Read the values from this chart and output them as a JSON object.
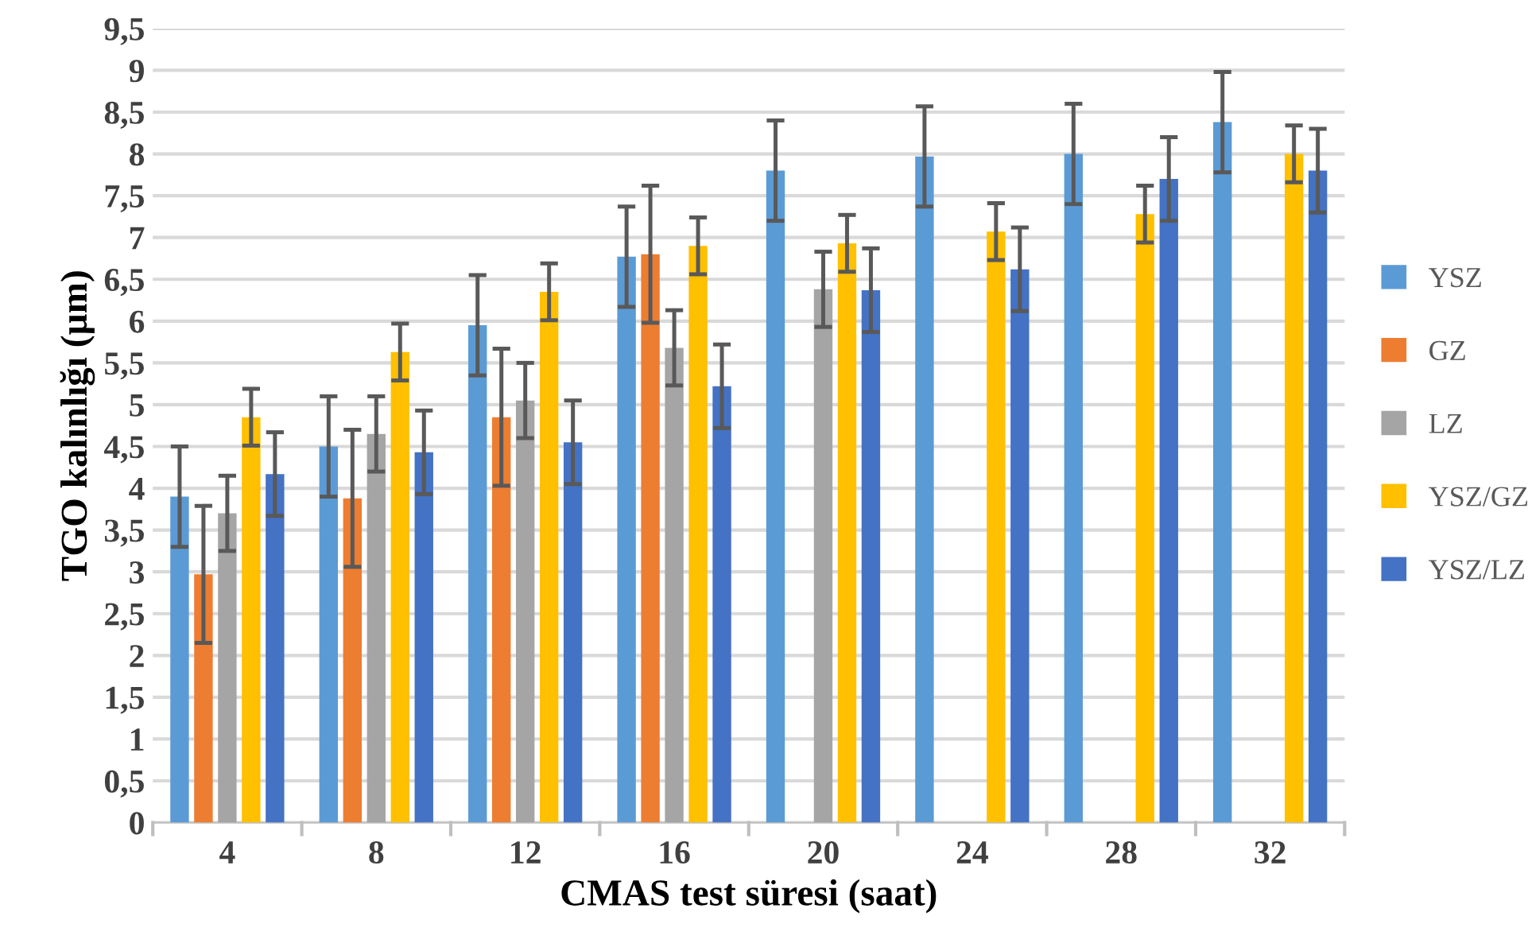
{
  "chart_data": {
    "type": "bar",
    "xlabel": "CMAS test süresi (saat)",
    "ylabel": "TGO kalınlığı (µm)",
    "categories": [
      "4",
      "8",
      "12",
      "16",
      "20",
      "24",
      "28",
      "32"
    ],
    "series": [
      {
        "name": "YSZ",
        "color": "#5b9bd5",
        "values": [
          3.9,
          4.5,
          5.95,
          6.77,
          7.8,
          7.97,
          8.0,
          8.38
        ],
        "errors": [
          0.6,
          0.6,
          0.6,
          0.6,
          0.6,
          0.6,
          0.6,
          0.6
        ]
      },
      {
        "name": "GZ",
        "color": "#ed7d31",
        "values": [
          2.97,
          3.88,
          4.85,
          6.8,
          null,
          null,
          null,
          null
        ],
        "errors": [
          0.82,
          0.82,
          0.82,
          0.82,
          null,
          null,
          null,
          null
        ]
      },
      {
        "name": "LZ",
        "color": "#a5a5a5",
        "values": [
          3.7,
          4.65,
          5.05,
          5.68,
          6.38,
          null,
          null,
          null
        ],
        "errors": [
          0.45,
          0.45,
          0.45,
          0.45,
          0.45,
          null,
          null,
          null
        ]
      },
      {
        "name": "YSZ/GZ",
        "color": "#ffc000",
        "values": [
          4.85,
          5.63,
          6.35,
          6.9,
          6.93,
          7.07,
          7.28,
          8.0
        ],
        "errors": [
          0.34,
          0.34,
          0.34,
          0.34,
          0.34,
          0.34,
          0.34,
          0.34
        ]
      },
      {
        "name": "YSZ/LZ",
        "color": "#4472c4",
        "values": [
          4.17,
          4.43,
          4.55,
          5.22,
          6.37,
          6.62,
          7.7,
          7.8
        ],
        "errors": [
          0.5,
          0.5,
          0.5,
          0.5,
          0.5,
          0.5,
          0.5,
          0.5
        ]
      }
    ],
    "ylim": [
      0,
      9.5
    ],
    "yticks": [
      0,
      {
        "value": 0.5,
        "label": "0,5"
      },
      1,
      {
        "value": 1.5,
        "label": "1,5"
      },
      2,
      {
        "value": 2.5,
        "label": "2,5"
      },
      3,
      {
        "value": 3.5,
        "label": "3,5"
      },
      4,
      {
        "value": 4.5,
        "label": "4,5"
      },
      5,
      {
        "value": 5.5,
        "label": "5,5"
      },
      6,
      {
        "value": 6.5,
        "label": "6,5"
      },
      7,
      {
        "value": 7.5,
        "label": "7,5"
      },
      8,
      {
        "value": 8.5,
        "label": "8,5"
      },
      9,
      {
        "value": 9.5,
        "label": "9,5"
      }
    ],
    "grid": "y",
    "legend": "right"
  }
}
